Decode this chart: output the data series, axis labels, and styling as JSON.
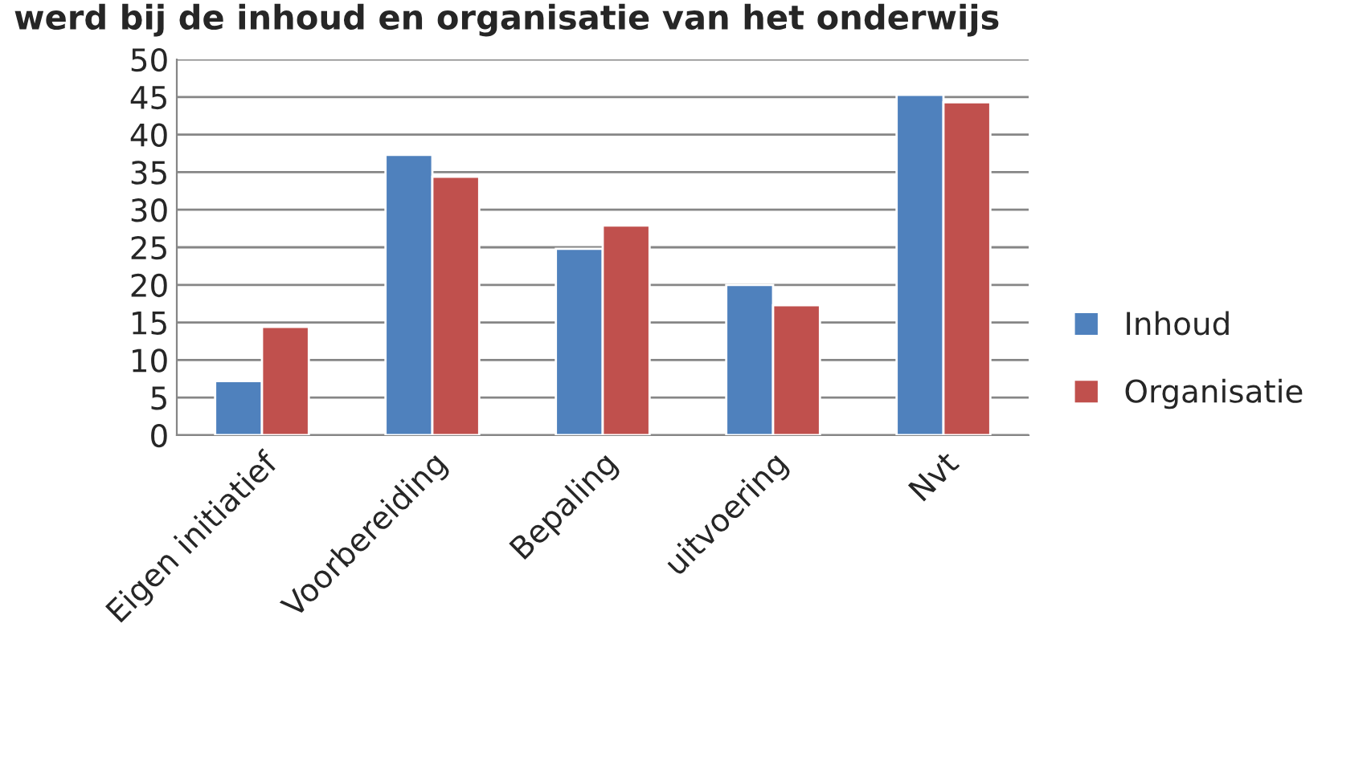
{
  "chart_data": {
    "type": "bar",
    "title": "werd bij de inhoud en organisatie van het onderwijs",
    "categories": [
      "Eigen initiatief",
      "Voorbereiding",
      "Bepaling",
      "uitvoering",
      "Nvt"
    ],
    "series": [
      {
        "name": "Inhoud",
        "color": "#4f81bd",
        "values": [
          7.2,
          37.3,
          24.8,
          20.0,
          45.3
        ]
      },
      {
        "name": "Organisatie",
        "color": "#c0504d",
        "values": [
          14.4,
          34.4,
          27.9,
          17.3,
          44.3
        ]
      }
    ],
    "ylim": [
      0,
      50
    ],
    "yticks": [
      0,
      5,
      10,
      15,
      20,
      25,
      30,
      35,
      40,
      45,
      50
    ],
    "grid": "y",
    "legend": "right"
  }
}
